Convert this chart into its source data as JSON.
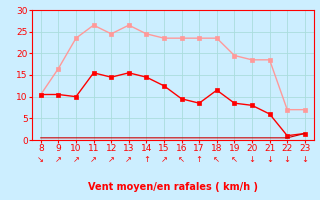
{
  "hours": [
    8,
    9,
    10,
    11,
    12,
    13,
    14,
    15,
    16,
    17,
    18,
    19,
    20,
    21,
    22,
    23
  ],
  "rafales": [
    10.5,
    16.5,
    23.5,
    26.5,
    24.5,
    26.5,
    24.5,
    23.5,
    23.5,
    23.5,
    23.5,
    19.5,
    18.5,
    18.5,
    7.0,
    7.0
  ],
  "vent_moyen": [
    10.5,
    10.5,
    10.0,
    15.5,
    14.5,
    15.5,
    14.5,
    12.5,
    9.5,
    8.5,
    11.5,
    8.5,
    8.0,
    6.0,
    1.0,
    1.5
  ],
  "direction": [
    0.5,
    0.5,
    0.5,
    0.5,
    0.5,
    0.5,
    0.5,
    0.5,
    0.5,
    0.5,
    0.5,
    0.5,
    0.5,
    0.5,
    0.5,
    1.5
  ],
  "rafales_color": "#ff9999",
  "vent_color": "#ff0000",
  "direction_color": "#cc0000",
  "bg_color": "#cceeff",
  "grid_color": "#aadddd",
  "axis_color": "#ff0000",
  "text_color": "#ff0000",
  "xlabel": "Vent moyen/en rafales ( km/h )",
  "ylim": [
    0,
    30
  ],
  "yticks": [
    0,
    5,
    10,
    15,
    20,
    25,
    30
  ],
  "xlabel_fontsize": 7,
  "tick_fontsize": 6.5,
  "arrow_dirs": [
    "↘",
    "↗",
    "↗",
    "↗",
    "↗",
    "↗",
    "↑",
    "↗",
    "↖",
    "↑",
    "↖",
    "↖",
    "↓",
    "↓",
    "↓",
    "↓"
  ]
}
